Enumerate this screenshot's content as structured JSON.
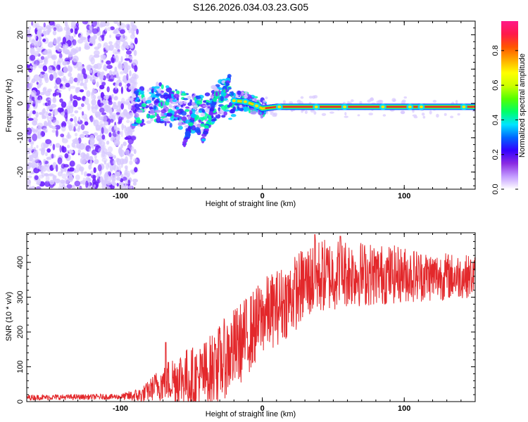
{
  "title": "S126.2026.034.03.23.G05",
  "colors": {
    "scatter_cold": "#6a1bff",
    "scatter_pale": "#d7c8ff",
    "ridge_red": "#e8232a",
    "ridge_green": "#3be23b",
    "snr_line": "#e3282b",
    "axis": "#000000"
  },
  "chart_data": [
    {
      "type": "heatmap",
      "name": "spectrogram",
      "xlabel": "Height of straight line (km)",
      "ylabel": "Frequency (Hz)",
      "xlim": [
        -166,
        150
      ],
      "ylim": [
        -25,
        24
      ],
      "xticks": [
        "-100",
        "0",
        "100"
      ],
      "xtick_values": [
        -100,
        0,
        100
      ],
      "yticks": [
        "-20",
        "-10",
        "0",
        "10",
        "20"
      ],
      "ytick_values": [
        -20,
        -10,
        0,
        10,
        20
      ],
      "noise_region_end": -88,
      "ridge": {
        "x": [
          -88,
          -75,
          -60,
          -45,
          -30,
          -20,
          -12,
          -5,
          0,
          10,
          20,
          60,
          100,
          150
        ],
        "freq": [
          -1.5,
          0.5,
          -1.5,
          -3.5,
          1.5,
          0.8,
          0.5,
          -0.5,
          -1.5,
          -1.0,
          -1.0,
          -1.0,
          -1.0,
          -1.0
        ]
      },
      "diagonal_streaks": [
        {
          "x": [
            -55,
            -48
          ],
          "freq": [
            -12,
            -3
          ]
        },
        {
          "x": [
            -42,
            -32
          ],
          "freq": [
            -11,
            3
          ]
        },
        {
          "x": [
            -30,
            -23
          ],
          "freq": [
            0,
            8
          ]
        }
      ],
      "colorbar": {
        "label": "Normalized spectral amplitude",
        "ticks": [
          "0.0",
          "0.2",
          "0.4",
          "0.6",
          "0.8"
        ],
        "tick_values": [
          0.0,
          0.2,
          0.4,
          0.6,
          0.8
        ],
        "range": [
          0,
          0.97
        ],
        "colorscale": [
          "#ffffff",
          "#c39bff",
          "#8a2be2",
          "#3300ff",
          "#0066ff",
          "#00e5ff",
          "#00ff66",
          "#55ff00",
          "#ccff00",
          "#ffff00",
          "#ffaa00",
          "#ff5500",
          "#ff1a4a",
          "#ff1a88"
        ]
      }
    },
    {
      "type": "line",
      "name": "snr",
      "xlabel": "Height of straight line (km)",
      "ylabel": "SNR (10 * v/v)",
      "xlim": [
        -166,
        150
      ],
      "ylim": [
        0,
        485
      ],
      "xticks": [
        "-100",
        "0",
        "100"
      ],
      "xtick_values": [
        -100,
        0,
        100
      ],
      "yticks": [
        "0",
        "100",
        "200",
        "300",
        "400"
      ],
      "ytick_values": [
        0,
        100,
        200,
        300,
        400
      ],
      "trend_x": [
        -166,
        -100,
        -85,
        -75,
        -60,
        -45,
        -35,
        -25,
        -15,
        -5,
        0,
        10,
        20,
        30,
        40,
        60,
        80,
        100,
        120,
        150
      ],
      "trend_y": [
        12,
        14,
        18,
        45,
        70,
        65,
        90,
        130,
        170,
        215,
        245,
        270,
        300,
        340,
        360,
        370,
        365,
        365,
        360,
        360
      ],
      "noise_amplitude_x": [
        -166,
        -100,
        -80,
        -60,
        -35,
        -20,
        0,
        40,
        80,
        150
      ],
      "noise_amplitude_y": [
        8,
        8,
        30,
        80,
        110,
        120,
        110,
        110,
        90,
        60
      ],
      "spikes": [
        {
          "x": -68,
          "y": 170
        },
        {
          "x": -33,
          "y": 165
        },
        {
          "x": 37,
          "y": 480
        },
        {
          "x": 55,
          "y": 475
        }
      ]
    }
  ]
}
